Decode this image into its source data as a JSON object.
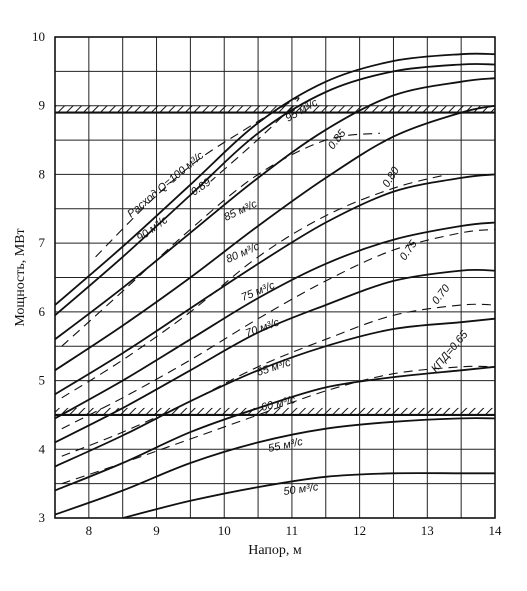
{
  "chart_data": {
    "type": "line",
    "title": "",
    "xlabel": "Напор, м",
    "ylabel": "Мощность, МВт",
    "xlim": [
      7.5,
      14
    ],
    "ylim": [
      3,
      10
    ],
    "x_ticks": [
      "8",
      "9",
      "10",
      "11",
      "12",
      "13",
      "14"
    ],
    "y_ticks": [
      "3",
      "4",
      "5",
      "6",
      "7",
      "8",
      "9",
      "10"
    ],
    "grid": true,
    "limit_lines": [
      {
        "name": "upper",
        "y": 8.9
      },
      {
        "name": "lower",
        "y": 4.5
      }
    ],
    "flow_series": [
      {
        "label": "Расход Q=100 м³/с",
        "x": [
          7.5,
          8.5,
          9.5,
          10.5,
          11.5,
          12.5,
          13.5,
          14
        ],
        "y": [
          6.1,
          6.95,
          7.85,
          8.75,
          9.35,
          9.65,
          9.75,
          9.75
        ]
      },
      {
        "label": "95 м³/с",
        "x": [
          7.5,
          8.5,
          9.5,
          10.5,
          11.5,
          12.5,
          13.5,
          14
        ],
        "y": [
          5.95,
          6.8,
          7.7,
          8.6,
          9.2,
          9.5,
          9.6,
          9.6
        ]
      },
      {
        "label": "90 м³/с",
        "x": [
          7.5,
          8.5,
          9.5,
          10.5,
          11.5,
          12.5,
          13.5,
          14
        ],
        "y": [
          5.6,
          6.35,
          7.15,
          7.95,
          8.65,
          9.15,
          9.35,
          9.4
        ]
      },
      {
        "label": "85 м³/с",
        "x": [
          7.5,
          8.5,
          9.5,
          10.5,
          11.5,
          12.5,
          13.5,
          14
        ],
        "y": [
          5.15,
          5.8,
          6.5,
          7.25,
          7.95,
          8.55,
          8.9,
          9.0
        ]
      },
      {
        "label": "80 м³/с",
        "x": [
          7.5,
          8.5,
          9.5,
          10.5,
          11.5,
          12.5,
          13.5,
          14
        ],
        "y": [
          4.8,
          5.4,
          6.05,
          6.7,
          7.3,
          7.75,
          7.95,
          8.0
        ]
      },
      {
        "label": "75 м³/с",
        "x": [
          7.5,
          8.5,
          9.5,
          10.5,
          11.5,
          12.5,
          13.5,
          14
        ],
        "y": [
          4.45,
          5.0,
          5.6,
          6.2,
          6.7,
          7.05,
          7.25,
          7.3
        ]
      },
      {
        "label": "70 м³/с",
        "x": [
          7.5,
          8.5,
          9.5,
          10.5,
          11.5,
          12.5,
          13.5,
          14
        ],
        "y": [
          4.1,
          4.6,
          5.15,
          5.7,
          6.1,
          6.45,
          6.6,
          6.6
        ]
      },
      {
        "label": "65 м³/с",
        "x": [
          7.5,
          8.5,
          9.5,
          10.5,
          11.5,
          12.5,
          13.5,
          14
        ],
        "y": [
          3.75,
          4.2,
          4.7,
          5.15,
          5.5,
          5.75,
          5.85,
          5.9
        ]
      },
      {
        "label": "60 м³/с",
        "x": [
          7.5,
          8.5,
          9.5,
          10.5,
          11.5,
          12.5,
          13.5,
          14
        ],
        "y": [
          3.4,
          3.8,
          4.25,
          4.6,
          4.9,
          5.05,
          5.15,
          5.2
        ]
      },
      {
        "label": "55 м³/с",
        "x": [
          7.5,
          8.5,
          9.5,
          10.5,
          11.5,
          12.5,
          13.5,
          14
        ],
        "y": [
          3.05,
          3.4,
          3.8,
          4.1,
          4.3,
          4.4,
          4.45,
          4.45
        ]
      },
      {
        "label": "50 м³/с",
        "x": [
          8.5,
          9.5,
          10.5,
          11.5,
          12.5,
          13.5,
          14
        ],
        "y": [
          3.0,
          3.25,
          3.45,
          3.6,
          3.65,
          3.65,
          3.65
        ]
      }
    ],
    "efficiency_series": [
      {
        "label": "0.89",
        "x": [
          8.1,
          8.9,
          9.6,
          10.3,
          10.8,
          11.1,
          10.6,
          9.8
        ],
        "y": [
          6.8,
          7.6,
          8.2,
          8.65,
          8.95,
          9.1,
          8.6,
          7.9
        ]
      },
      {
        "label": "0.85",
        "x": [
          7.6,
          8.5,
          9.5,
          10.5,
          11.5,
          12.3
        ],
        "y": [
          5.5,
          6.3,
          7.2,
          8.0,
          8.5,
          8.6
        ]
      },
      {
        "label": "0.80",
        "x": [
          7.6,
          8.5,
          9.5,
          10.5,
          11.5,
          12.5,
          13.3
        ],
        "y": [
          4.75,
          5.3,
          6.0,
          6.8,
          7.4,
          7.8,
          8.0
        ]
      },
      {
        "label": "0.75",
        "x": [
          7.6,
          8.5,
          9.5,
          10.5,
          11.5,
          12.5,
          13.5,
          14
        ],
        "y": [
          4.3,
          4.75,
          5.3,
          5.9,
          6.45,
          6.9,
          7.15,
          7.2
        ]
      },
      {
        "label": "0.70",
        "x": [
          7.6,
          8.5,
          9.5,
          10.5,
          11.5,
          12.5,
          13.5,
          14
        ],
        "y": [
          3.9,
          4.25,
          4.7,
          5.2,
          5.6,
          5.95,
          6.1,
          6.1
        ]
      },
      {
        "label": "КПД=0.65",
        "x": [
          7.6,
          8.5,
          9.5,
          10.5,
          11.5,
          12.5,
          13.5,
          14
        ],
        "y": [
          3.5,
          3.8,
          4.15,
          4.5,
          4.85,
          5.1,
          5.2,
          5.2
        ]
      }
    ]
  }
}
